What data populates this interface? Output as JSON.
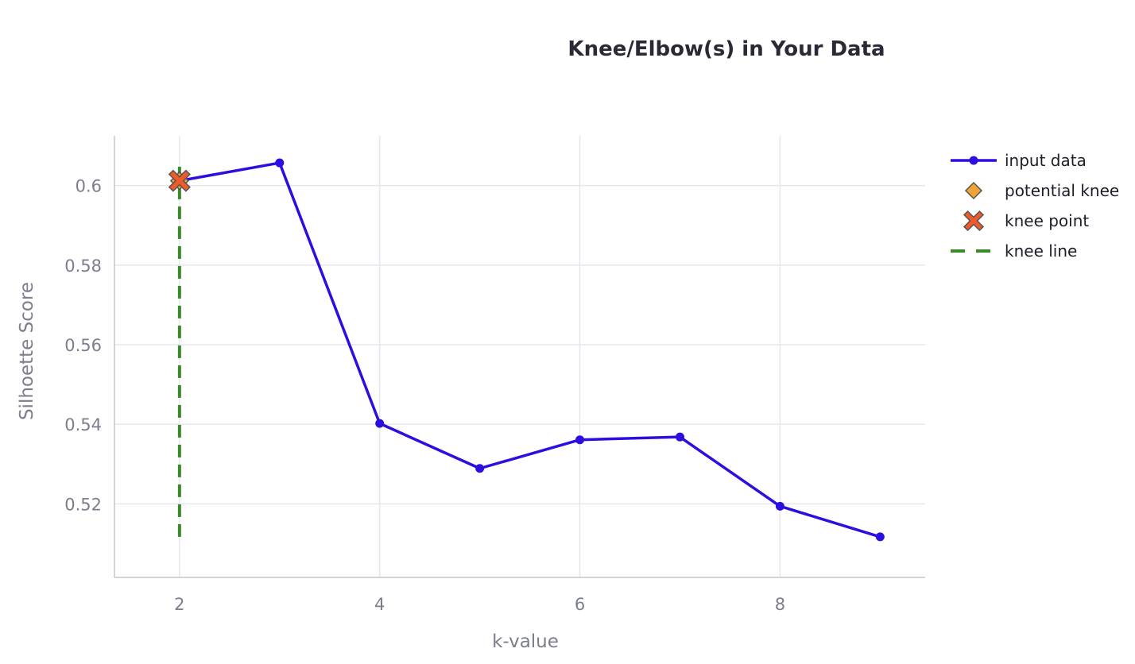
{
  "chart_data": {
    "type": "line",
    "title": "Knee/Elbow(s) in Your Data",
    "xlabel": "k-value",
    "ylabel": "Silhoette Score",
    "xlim": [
      1.35,
      9.45
    ],
    "ylim": [
      0.5015,
      0.6125
    ],
    "x_ticks": [
      2,
      4,
      6,
      8
    ],
    "y_ticks": [
      0.52,
      0.54,
      0.56,
      0.58,
      0.6
    ],
    "x_tick_labels": [
      "2",
      "4",
      "6",
      "8"
    ],
    "y_tick_labels": [
      "0.52",
      "0.54",
      "0.56",
      "0.58",
      "0.6"
    ],
    "grid": true,
    "legend_position": "right",
    "series": [
      {
        "name": "input data",
        "kind": "line+markers",
        "color": "#2b0fe0",
        "x": [
          2,
          3,
          4,
          5,
          6,
          7,
          8,
          9
        ],
        "y": [
          0.6012,
          0.6057,
          0.5402,
          0.5289,
          0.5361,
          0.5368,
          0.5194,
          0.5117
        ]
      },
      {
        "name": "potential knee",
        "kind": "marker-diamond",
        "color": "#f0a23a",
        "x": [
          2
        ],
        "y": [
          0.6012
        ]
      },
      {
        "name": "knee point",
        "kind": "marker-x",
        "color": "#ee5a28",
        "x": [
          2
        ],
        "y": [
          0.6012
        ]
      },
      {
        "name": "knee line",
        "kind": "dashed-line",
        "color": "#3a8a2a",
        "x": [
          2,
          2
        ],
        "y": [
          0.5117,
          0.6057
        ]
      }
    ]
  }
}
